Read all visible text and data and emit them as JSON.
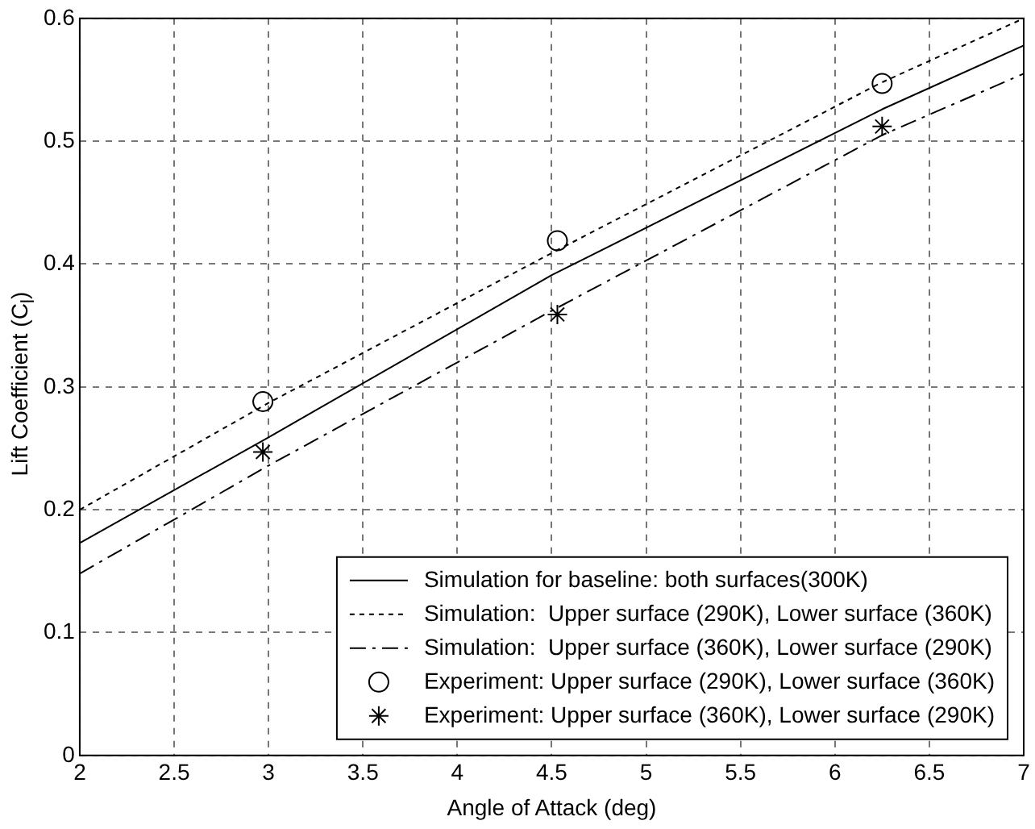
{
  "chart_data": {
    "type": "line",
    "xlabel": "Angle of Attack (deg)",
    "ylabel": "Lift Coefficient (C$_{l}$)",
    "xlim": [
      2,
      7
    ],
    "xticks": [
      2,
      2.5,
      3,
      3.5,
      4,
      4.5,
      5,
      5.5,
      6,
      6.5,
      7
    ],
    "ylim": [
      0,
      0.6
    ],
    "yticks": [
      0,
      0.1,
      0.2,
      0.3,
      0.4,
      0.5,
      0.6
    ],
    "grid": true,
    "legend": "bottom right",
    "series": [
      {
        "name": "Simulation for baseline: both surfaces(300K)",
        "color": "#000000",
        "line_style": "solid",
        "marker": "none",
        "x": [
          2,
          3,
          4.5,
          6.25,
          7
        ],
        "values": [
          0.173,
          0.259,
          0.391,
          0.526,
          0.578
        ]
      },
      {
        "name": "Simulation:  Upper surface (290K), Lower surface (360K)",
        "color": "#000000",
        "line_style": "dotted",
        "marker": "none",
        "x": [
          2,
          3,
          4.5,
          6.25,
          7
        ],
        "values": [
          0.2,
          0.287,
          0.409,
          0.548,
          0.6
        ]
      },
      {
        "name": "Simulation:  Upper surface (360K), Lower surface (290K)",
        "color": "#000000",
        "line_style": "dashdot",
        "marker": "none",
        "x": [
          2,
          3,
          4.5,
          6.25,
          7
        ],
        "values": [
          0.148,
          0.236,
          0.362,
          0.505,
          0.555
        ]
      },
      {
        "name": "Experiment: Upper surface (290K), Lower surface (360K)",
        "type": "scatter",
        "color": "#000000",
        "marker": "circle",
        "x": [
          2.97,
          4.53,
          6.25
        ],
        "values": [
          0.288,
          0.419,
          0.547
        ]
      },
      {
        "name": "Experiment: Upper surface (360K), Lower surface (290K)",
        "type": "scatter",
        "color": "#000000",
        "marker": "cross",
        "x": [
          2.97,
          4.53,
          6.25
        ],
        "values": [
          0.247,
          0.359,
          0.512
        ]
      }
    ]
  }
}
